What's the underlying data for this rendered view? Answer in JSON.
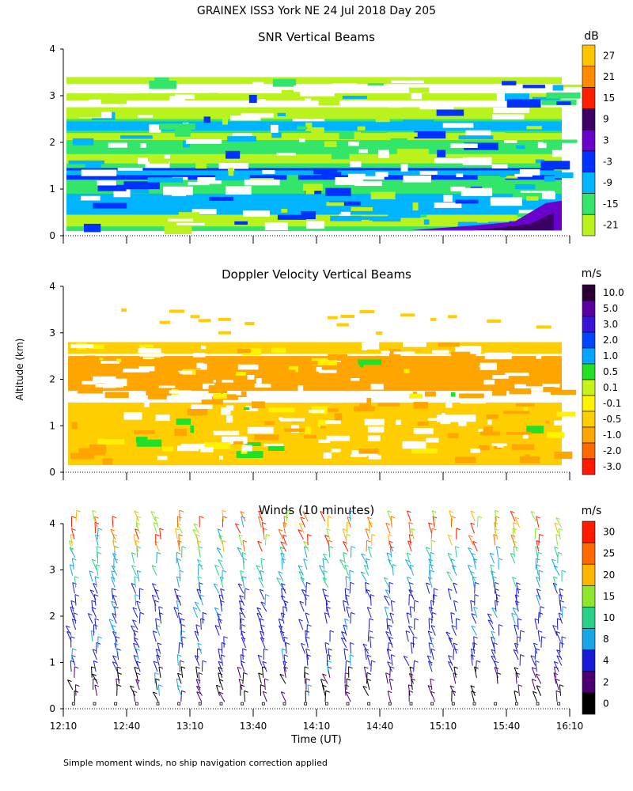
{
  "title": "GRAINEX ISS3 York NE  24 Jul 2018 Day 205",
  "x_axis_label": "Time (UT)",
  "y_axis_label": "Altitude (km)",
  "footnote": "Simple moment winds, no ship navigation correction applied",
  "colors": {
    "white_bg": "#ffffff",
    "axis": "#000000"
  },
  "chart_data": [
    {
      "type": "heatmap",
      "title": "SNR Vertical Beams",
      "unit": "dB",
      "x_ticks": [
        "12:10",
        "12:40",
        "13:10",
        "13:40",
        "14:10",
        "14:40",
        "15:10",
        "15:40",
        "16:10"
      ],
      "y_ticks": [
        "0",
        "1",
        "2",
        "3",
        "4"
      ],
      "ylim": [
        0,
        4
      ],
      "colorbar_labels": [
        "27",
        "21",
        "15",
        "9",
        "3",
        "-3",
        "-9",
        "-15",
        "-21"
      ],
      "colorbar_colors": [
        "#ffc400",
        "#ff8a00",
        "#ff1e00",
        "#3b0066",
        "#6a00cc",
        "#0032ff",
        "#00b4ff",
        "#33e66a",
        "#b9f21c"
      ]
    },
    {
      "type": "heatmap",
      "title": "Doppler Velocity Vertical Beams",
      "unit": "m/s",
      "x_ticks": [
        "12:10",
        "12:40",
        "13:10",
        "13:40",
        "14:10",
        "14:40",
        "15:10",
        "15:40",
        "16:10"
      ],
      "y_ticks": [
        "0",
        "1",
        "2",
        "3",
        "4"
      ],
      "ylim": [
        0,
        4
      ],
      "colorbar_labels": [
        "10.0",
        "5.0",
        "3.0",
        "2.0",
        "1.0",
        "0.5",
        "0.1",
        "-0.1",
        "-0.5",
        "-1.0",
        "-2.0",
        "-3.0"
      ],
      "colorbar_colors": [
        "#2a0033",
        "#5a00a0",
        "#3a14d8",
        "#0046ff",
        "#00a6ff",
        "#22e025",
        "#c6f21a",
        "#fff200",
        "#ffce00",
        "#ffa500",
        "#ff6a00",
        "#ff1a00"
      ]
    },
    {
      "type": "scatter",
      "title": "Winds (10 minutes)",
      "unit": "m/s",
      "x_ticks": [
        "12:10",
        "12:40",
        "13:10",
        "13:40",
        "14:10",
        "14:40",
        "15:10",
        "15:40",
        "16:10"
      ],
      "y_ticks": [
        "0",
        "1",
        "2",
        "3",
        "4"
      ],
      "ylim": [
        0,
        4
      ],
      "colorbar_labels": [
        "30",
        "25",
        "20",
        "15",
        "10",
        "8",
        "4",
        "2",
        "0"
      ],
      "colorbar_colors": [
        "#ff1a00",
        "#ff6a00",
        "#ffb400",
        "#8ee62a",
        "#29d08a",
        "#19a6e6",
        "#1a1ad8",
        "#4a0070",
        "#000000"
      ],
      "wind_times": [
        "12:15",
        "12:25",
        "12:35",
        "12:45",
        "12:55",
        "13:05",
        "13:15",
        "13:25",
        "13:35",
        "13:45",
        "13:55",
        "14:05",
        "14:15",
        "14:25",
        "14:35",
        "14:45",
        "14:55",
        "15:05",
        "15:15",
        "15:25",
        "15:35",
        "15:45",
        "15:55",
        "16:05"
      ]
    }
  ]
}
